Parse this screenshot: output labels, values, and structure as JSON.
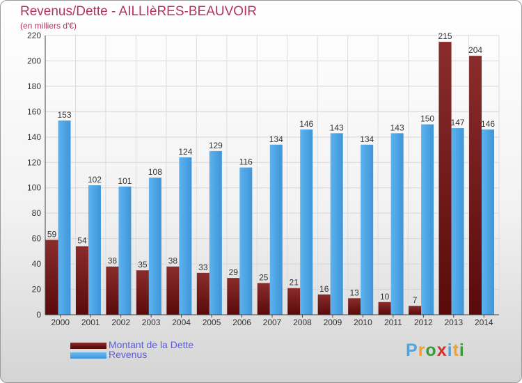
{
  "title": "Revenus/Dette - AILLIèRES-BEAUVOIR",
  "subtitle": "(en milliers d'€)",
  "logo": {
    "letters": [
      "P",
      "r",
      "o",
      "x",
      "i",
      "t",
      "i"
    ],
    "colors": [
      "#4aa5e0",
      "#f0a030",
      "#3a9a3a",
      "#d03030",
      "#4aa5e0",
      "#f0a030",
      "#3a9a3a"
    ]
  },
  "legend": [
    {
      "label": "Montant de la Dette",
      "color": "#7a1e1e"
    },
    {
      "label": "Revenus",
      "color": "#4ba2e6"
    }
  ],
  "chart_data": {
    "type": "bar",
    "categories": [
      "2000",
      "2001",
      "2002",
      "2003",
      "2004",
      "2005",
      "2006",
      "2007",
      "2008",
      "2009",
      "2010",
      "2011",
      "2012",
      "2013",
      "2014"
    ],
    "series": [
      {
        "name": "Montant de la Dette",
        "color": "#7a1e1e",
        "values": [
          59,
          54,
          38,
          35,
          38,
          33,
          29,
          25,
          21,
          16,
          13,
          10,
          7,
          215,
          204
        ]
      },
      {
        "name": "Revenus",
        "color": "#4ba2e6",
        "values": [
          153,
          102,
          101,
          108,
          124,
          129,
          116,
          134,
          146,
          143,
          134,
          143,
          150,
          147,
          146
        ]
      }
    ],
    "yticks": [
      0,
      20,
      40,
      60,
      80,
      100,
      120,
      140,
      160,
      180,
      200,
      220
    ],
    "ylim": [
      0,
      220
    ],
    "grid": true,
    "legend_position": "bottom-left"
  }
}
